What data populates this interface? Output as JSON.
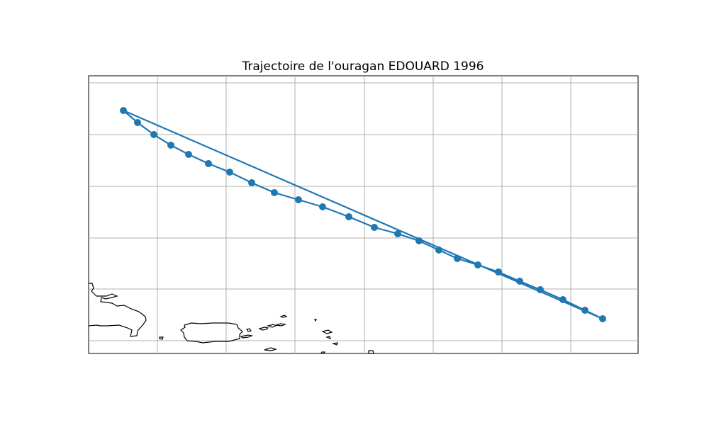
{
  "title": "Trajectoire de l'ouragan EDOUARD 1996",
  "colors": {
    "track": "#1f77b4",
    "grid": "#b0b0b0",
    "coastline": "#000000",
    "background": "#ffffff"
  },
  "chart_data": {
    "type": "map-track",
    "title": "Trajectoire de l'ouragan EDOUARD 1996",
    "grid": true,
    "axis_tick_labels_shown": false,
    "track_points_shown_in_figure_order": [
      {
        "id": 1
      },
      {
        "id": 2
      },
      {
        "id": 3
      },
      {
        "id": 4
      },
      {
        "id": 5
      },
      {
        "id": 6
      },
      {
        "id": 7
      },
      {
        "id": 8
      },
      {
        "id": 9
      },
      {
        "id": 10
      },
      {
        "id": 11
      },
      {
        "id": 12
      },
      {
        "id": 13
      },
      {
        "id": 14
      },
      {
        "id": 15
      },
      {
        "id": 16
      },
      {
        "id": 17
      },
      {
        "id": 18
      },
      {
        "id": 19
      },
      {
        "id": 20
      },
      {
        "id": 21
      },
      {
        "id": 22
      },
      {
        "id": 23
      }
    ],
    "visible_land": [
      "Greater Antilles coastline",
      "Puerto Rico coastline",
      "Virgin Islands coastline"
    ]
  }
}
